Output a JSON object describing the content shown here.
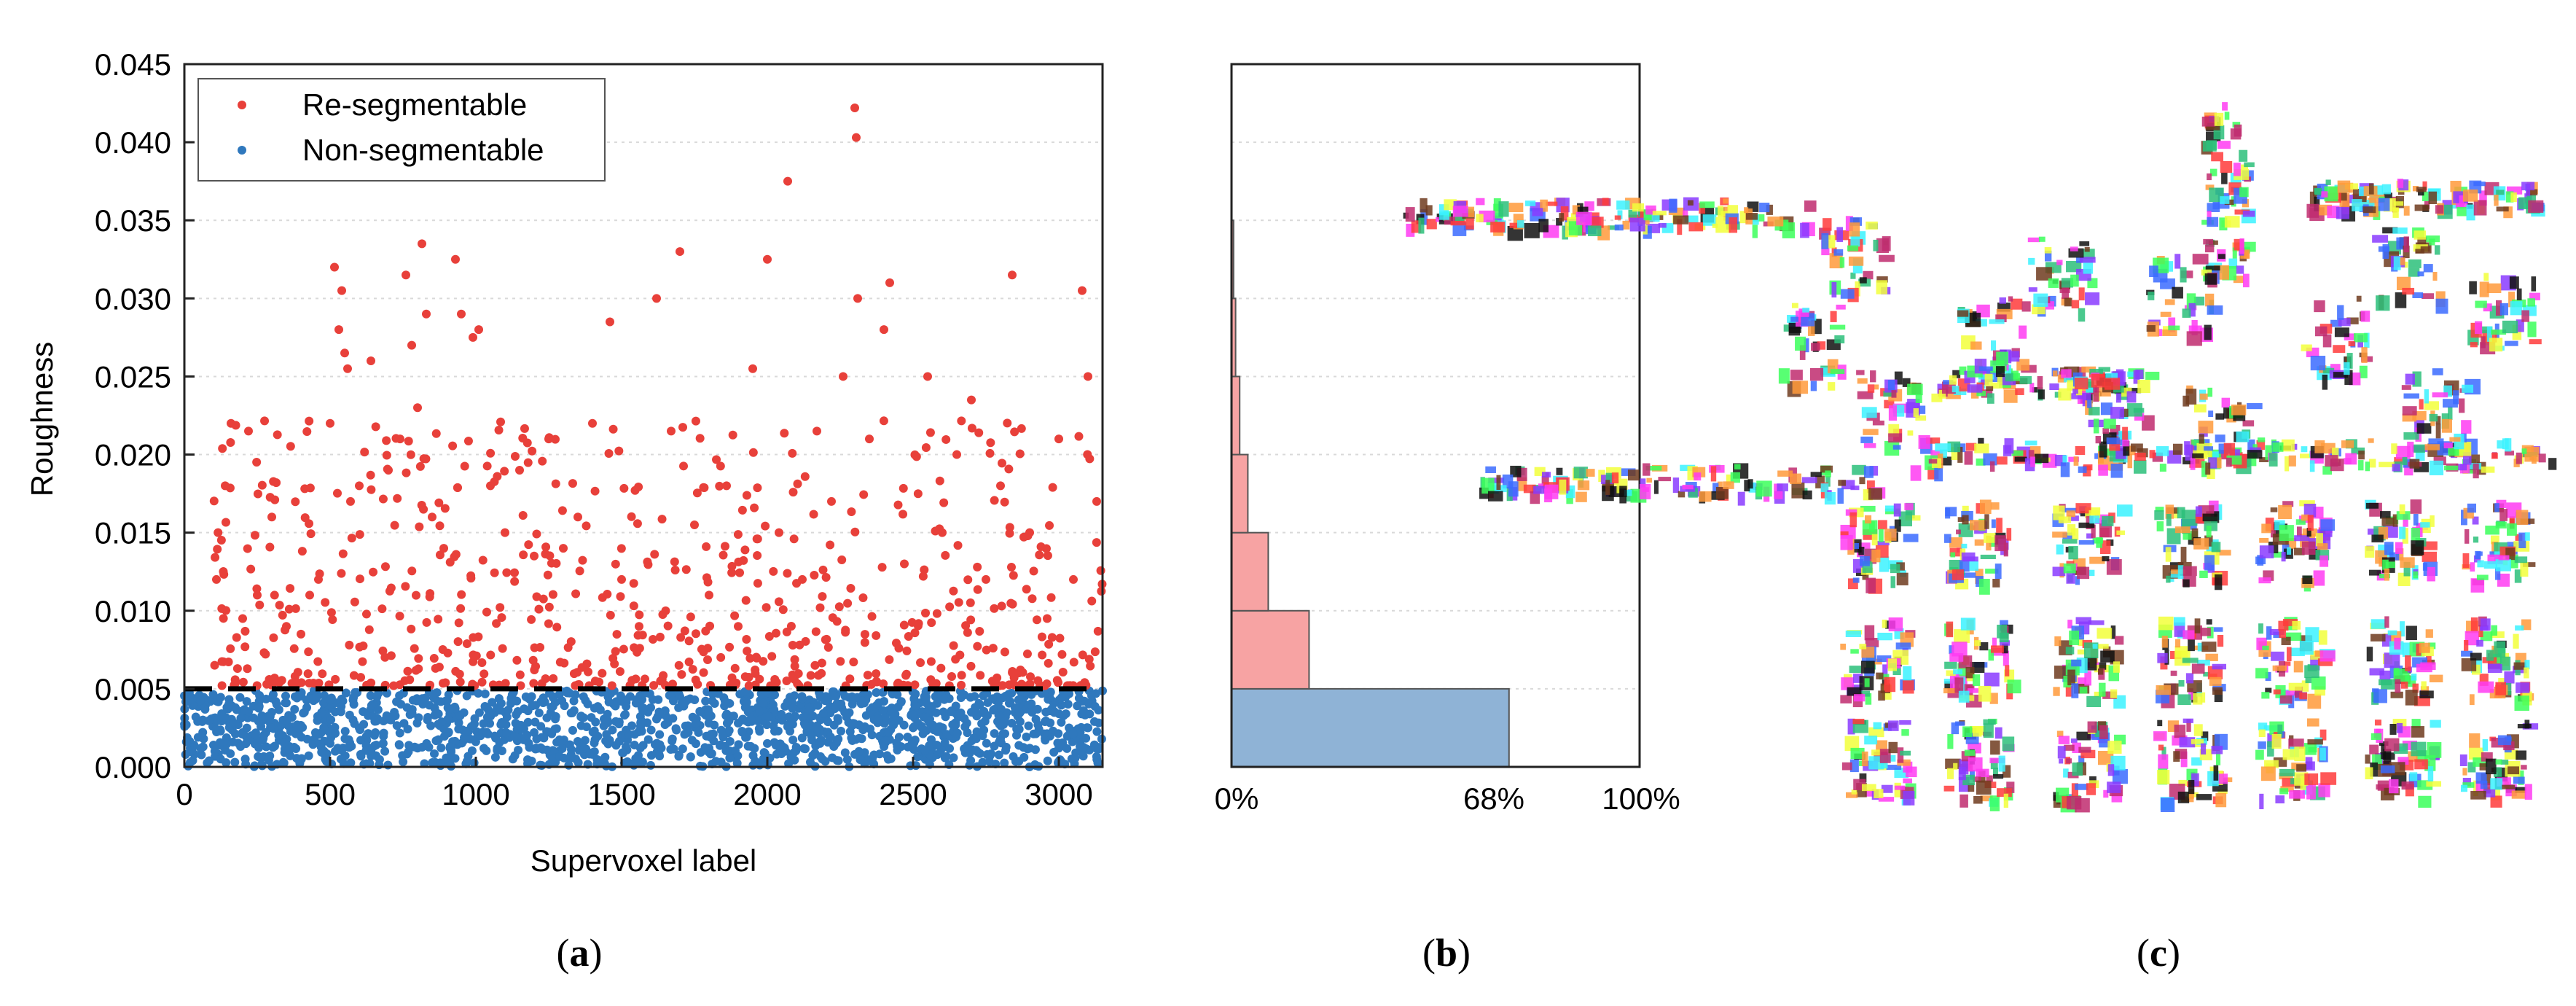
{
  "colors": {
    "re_segmentable": "#e8403a",
    "non_segmentable": "#2f78bd",
    "hist_re": "#f7a3a3",
    "hist_non": "#8fb3d6",
    "threshold_line": "#000000",
    "grid": "#d9d9d9"
  },
  "panel_a": {
    "caption_left": "(",
    "caption_letter": "a",
    "caption_right": ")",
    "ylabel": "Roughness",
    "xlabel": "Supervoxel label",
    "legend": {
      "placement": "top-left",
      "items": [
        "Re-segmentable",
        "Non-segmentable"
      ]
    },
    "xticks": [
      "0",
      "500",
      "1000",
      "1500",
      "2000",
      "2500",
      "3000"
    ],
    "yticks": [
      "0.000",
      "0.005",
      "0.010",
      "0.015",
      "0.020",
      "0.025",
      "0.030",
      "0.035",
      "0.040",
      "0.045"
    ]
  },
  "panel_b": {
    "caption_left": "(",
    "caption_letter": "b",
    "caption_right": ")",
    "xticks": [
      "0%",
      "68%",
      "100%"
    ]
  },
  "panel_c": {
    "caption_left": "(",
    "caption_letter": "c",
    "caption_right": ")"
  },
  "chart_data": [
    {
      "type": "scatter",
      "title": "",
      "xlabel": "Supervoxel label",
      "ylabel": "Roughness",
      "xlim": [
        0,
        3150
      ],
      "ylim": [
        0,
        0.045
      ],
      "grid": "horizontal dotted",
      "legend_placement": "top-left",
      "threshold": 0.005,
      "series": [
        {
          "name": "Re-segmentable",
          "points": [
            [
              110,
              0.012
            ],
            [
              140,
              0.018
            ],
            [
              160,
              0.022
            ],
            [
              200,
              0.0095
            ],
            [
              220,
              0.0215
            ],
            [
              250,
              0.011
            ],
            [
              300,
              0.016
            ],
            [
              350,
              0.009
            ],
            [
              400,
              0.0085
            ],
            [
              430,
              0.011
            ],
            [
              460,
              0.012
            ],
            [
              500,
              0.022
            ],
            [
              515,
              0.032
            ],
            [
              530,
              0.028
            ],
            [
              540,
              0.0305
            ],
            [
              550,
              0.0265
            ],
            [
              560,
              0.0255
            ],
            [
              570,
              0.017
            ],
            [
              600,
              0.018
            ],
            [
              640,
              0.026
            ],
            [
              700,
              0.019
            ],
            [
              740,
              0.021
            ],
            [
              760,
              0.0315
            ],
            [
              780,
              0.027
            ],
            [
              800,
              0.023
            ],
            [
              815,
              0.0335
            ],
            [
              830,
              0.029
            ],
            [
              850,
              0.016
            ],
            [
              890,
              0.014
            ],
            [
              930,
              0.0325
            ],
            [
              950,
              0.029
            ],
            [
              990,
              0.0275
            ],
            [
              1010,
              0.028
            ],
            [
              1050,
              0.018
            ],
            [
              1100,
              0.015
            ],
            [
              1150,
              0.019
            ],
            [
              1200,
              0.0135
            ],
            [
              1250,
              0.021
            ],
            [
              1300,
              0.014
            ],
            [
              1350,
              0.016
            ],
            [
              1400,
              0.022
            ],
            [
              1460,
              0.0285
            ],
            [
              1500,
              0.012
            ],
            [
              1560,
              0.009
            ],
            [
              1620,
              0.03
            ],
            [
              1670,
              0.0215
            ],
            [
              1700,
              0.033
            ],
            [
              1750,
              0.0155
            ],
            [
              1800,
              0.011
            ],
            [
              1860,
              0.018
            ],
            [
              1900,
              0.009
            ],
            [
              1950,
              0.0255
            ],
            [
              2000,
              0.0325
            ],
            [
              2040,
              0.015
            ],
            [
              2070,
              0.0375
            ],
            [
              2120,
              0.012
            ],
            [
              2170,
              0.0215
            ],
            [
              2220,
              0.017
            ],
            [
              2260,
              0.025
            ],
            [
              2300,
              0.0422
            ],
            [
              2305,
              0.0403
            ],
            [
              2310,
              0.03
            ],
            [
              2350,
              0.021
            ],
            [
              2400,
              0.028
            ],
            [
              2420,
              0.031
            ],
            [
              2470,
              0.013
            ],
            [
              2550,
              0.025
            ],
            [
              2600,
              0.015
            ],
            [
              2650,
              0.02
            ],
            [
              2700,
              0.0235
            ],
            [
              2750,
              0.012
            ],
            [
              2800,
              0.018
            ],
            [
              2840,
              0.0315
            ],
            [
              2900,
              0.015
            ],
            [
              2960,
              0.0095
            ],
            [
              3000,
              0.021
            ],
            [
              3050,
              0.012
            ],
            [
              3080,
              0.0305
            ],
            [
              3100,
              0.025
            ],
            [
              3130,
              0.017
            ]
          ]
        },
        {
          "name": "Non-segmentable",
          "points": [
            [
              20,
              0.0012
            ],
            [
              100,
              0.0014
            ],
            [
              200,
              0.0022
            ],
            [
              300,
              0.0035
            ],
            [
              380,
              0.0045
            ],
            [
              420,
              0.0038
            ],
            [
              500,
              0.0015
            ],
            [
              600,
              0.0025
            ],
            [
              700,
              0.0032
            ],
            [
              800,
              0.0012
            ],
            [
              900,
              0.0028
            ],
            [
              1000,
              0.0018
            ],
            [
              1100,
              0.0035
            ],
            [
              1200,
              0.0022
            ],
            [
              1300,
              0.0015
            ],
            [
              1400,
              0.0008
            ],
            [
              1500,
              0.0042
            ],
            [
              1600,
              0.0038
            ],
            [
              1700,
              0.0045
            ],
            [
              1800,
              0.0012
            ],
            [
              1900,
              0.0028
            ],
            [
              2000,
              0.0015
            ],
            [
              2100,
              0.0012
            ],
            [
              2200,
              0.0032
            ],
            [
              2300,
              0.0008
            ],
            [
              2400,
              0.0042
            ],
            [
              2500,
              0.0025
            ],
            [
              2600,
              0.0012
            ],
            [
              2700,
              0.0035
            ],
            [
              2800,
              0.0018
            ],
            [
              2900,
              0.0038
            ],
            [
              3000,
              0.0012
            ],
            [
              3100,
              0.0025
            ]
          ]
        }
      ]
    },
    {
      "type": "bar",
      "orientation": "horizontal",
      "title": "",
      "xlim": [
        0,
        100
      ],
      "ylim": [
        0,
        0.045
      ],
      "bins": [
        {
          "range": [
            0.0,
            0.005
          ],
          "percent": 68,
          "series": "Non-segmentable"
        },
        {
          "range": [
            0.005,
            0.01
          ],
          "percent": 19,
          "series": "Re-segmentable"
        },
        {
          "range": [
            0.01,
            0.015
          ],
          "percent": 9,
          "series": "Re-segmentable"
        },
        {
          "range": [
            0.015,
            0.02
          ],
          "percent": 4,
          "series": "Re-segmentable"
        },
        {
          "range": [
            0.02,
            0.025
          ],
          "percent": 2,
          "series": "Re-segmentable"
        },
        {
          "range": [
            0.025,
            0.03
          ],
          "percent": 1,
          "series": "Re-segmentable"
        },
        {
          "range": [
            0.03,
            0.035
          ],
          "percent": 0.5,
          "series": "Re-segmentable"
        }
      ]
    }
  ]
}
